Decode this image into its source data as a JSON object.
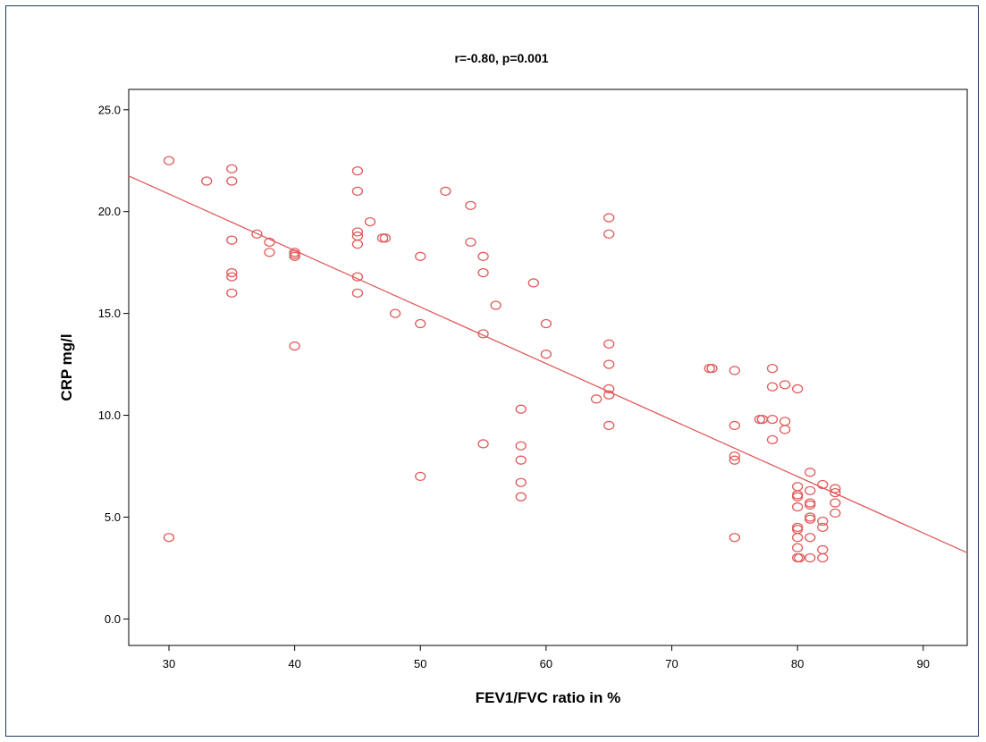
{
  "chart_data": {
    "type": "scatter",
    "title": "r=-0.80, p=0.001",
    "xlabel": "FEV1/FVC ratio in %",
    "ylabel": "CRP mg/l",
    "xlim": [
      26.8,
      93.5
    ],
    "ylim": [
      -1.3,
      26.0
    ],
    "xticks": [
      30,
      40,
      50,
      60,
      70,
      80,
      90
    ],
    "yticks": [
      0.0,
      5.0,
      10.0,
      15.0,
      20.0,
      25.0
    ],
    "ytick_labels": [
      "0.0",
      "5.0",
      "10.0",
      "15.0",
      "20.0",
      "25.0"
    ],
    "grid": false,
    "marker_color": "#e05a5a",
    "fit_line": {
      "x": [
        26.8,
        93.5
      ],
      "y": [
        21.75,
        3.25
      ]
    },
    "points": [
      {
        "x": 30,
        "y": 22.5
      },
      {
        "x": 30,
        "y": 4.0
      },
      {
        "x": 33,
        "y": 21.5
      },
      {
        "x": 35,
        "y": 22.1
      },
      {
        "x": 35,
        "y": 21.5
      },
      {
        "x": 35,
        "y": 18.6
      },
      {
        "x": 35,
        "y": 17.0
      },
      {
        "x": 35,
        "y": 16.8
      },
      {
        "x": 35,
        "y": 16.0
      },
      {
        "x": 37,
        "y": 18.9
      },
      {
        "x": 38,
        "y": 18.5
      },
      {
        "x": 38,
        "y": 18.0
      },
      {
        "x": 40,
        "y": 18.0
      },
      {
        "x": 40,
        "y": 17.9
      },
      {
        "x": 40,
        "y": 17.8
      },
      {
        "x": 40,
        "y": 13.4
      },
      {
        "x": 45,
        "y": 22.0
      },
      {
        "x": 45,
        "y": 21.0
      },
      {
        "x": 45,
        "y": 19.0
      },
      {
        "x": 45,
        "y": 18.8
      },
      {
        "x": 45,
        "y": 18.4
      },
      {
        "x": 45,
        "y": 16.8
      },
      {
        "x": 45,
        "y": 16.0
      },
      {
        "x": 46,
        "y": 19.5
      },
      {
        "x": 47,
        "y": 18.7
      },
      {
        "x": 47.2,
        "y": 18.7
      },
      {
        "x": 48,
        "y": 15.0
      },
      {
        "x": 50,
        "y": 17.8
      },
      {
        "x": 50,
        "y": 14.5
      },
      {
        "x": 50,
        "y": 7.0
      },
      {
        "x": 52,
        "y": 21.0
      },
      {
        "x": 54,
        "y": 20.3
      },
      {
        "x": 54,
        "y": 18.5
      },
      {
        "x": 55,
        "y": 17.8
      },
      {
        "x": 55,
        "y": 17.0
      },
      {
        "x": 55,
        "y": 14.0
      },
      {
        "x": 55,
        "y": 8.6
      },
      {
        "x": 56,
        "y": 15.4
      },
      {
        "x": 58,
        "y": 10.3
      },
      {
        "x": 58,
        "y": 8.5
      },
      {
        "x": 58,
        "y": 7.8
      },
      {
        "x": 58,
        "y": 6.7
      },
      {
        "x": 58,
        "y": 6.0
      },
      {
        "x": 59,
        "y": 16.5
      },
      {
        "x": 60,
        "y": 14.5
      },
      {
        "x": 60,
        "y": 13.0
      },
      {
        "x": 64,
        "y": 10.8
      },
      {
        "x": 65,
        "y": 19.7
      },
      {
        "x": 65,
        "y": 18.9
      },
      {
        "x": 65,
        "y": 13.5
      },
      {
        "x": 65,
        "y": 12.5
      },
      {
        "x": 65,
        "y": 11.3
      },
      {
        "x": 65,
        "y": 11.0
      },
      {
        "x": 65,
        "y": 9.5
      },
      {
        "x": 73,
        "y": 12.3
      },
      {
        "x": 73.2,
        "y": 12.3
      },
      {
        "x": 75,
        "y": 12.2
      },
      {
        "x": 75,
        "y": 9.5
      },
      {
        "x": 75,
        "y": 8.0
      },
      {
        "x": 75,
        "y": 7.8
      },
      {
        "x": 75,
        "y": 4.0
      },
      {
        "x": 77,
        "y": 9.8
      },
      {
        "x": 77.2,
        "y": 9.8
      },
      {
        "x": 78,
        "y": 12.3
      },
      {
        "x": 78,
        "y": 11.4
      },
      {
        "x": 78,
        "y": 9.8
      },
      {
        "x": 78,
        "y": 8.8
      },
      {
        "x": 79,
        "y": 11.5
      },
      {
        "x": 79,
        "y": 9.7
      },
      {
        "x": 79,
        "y": 9.3
      },
      {
        "x": 80,
        "y": 11.3
      },
      {
        "x": 80,
        "y": 6.5
      },
      {
        "x": 80,
        "y": 6.1
      },
      {
        "x": 80,
        "y": 6.0
      },
      {
        "x": 80,
        "y": 5.5
      },
      {
        "x": 80,
        "y": 4.5
      },
      {
        "x": 80,
        "y": 4.4
      },
      {
        "x": 80,
        "y": 4.0
      },
      {
        "x": 80,
        "y": 3.5
      },
      {
        "x": 80,
        "y": 3.0
      },
      {
        "x": 80.15,
        "y": 3.0
      },
      {
        "x": 81,
        "y": 7.2
      },
      {
        "x": 81,
        "y": 6.3
      },
      {
        "x": 81,
        "y": 5.7
      },
      {
        "x": 81,
        "y": 5.6
      },
      {
        "x": 81,
        "y": 5.0
      },
      {
        "x": 81,
        "y": 4.9
      },
      {
        "x": 81,
        "y": 4.0
      },
      {
        "x": 81,
        "y": 3.0
      },
      {
        "x": 82,
        "y": 6.6
      },
      {
        "x": 82,
        "y": 4.8
      },
      {
        "x": 82,
        "y": 4.5
      },
      {
        "x": 82,
        "y": 3.4
      },
      {
        "x": 82,
        "y": 3.0
      },
      {
        "x": 83,
        "y": 6.4
      },
      {
        "x": 83,
        "y": 6.2
      },
      {
        "x": 83,
        "y": 5.7
      },
      {
        "x": 83,
        "y": 5.2
      }
    ]
  }
}
